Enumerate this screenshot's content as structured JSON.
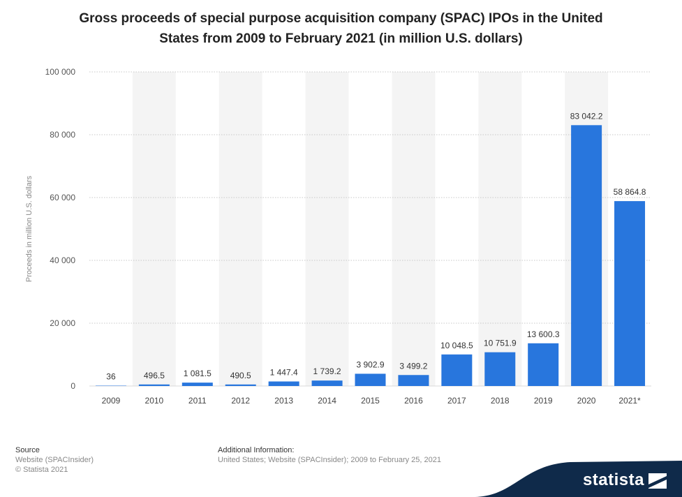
{
  "title": {
    "line1": "Gross proceeds of special purpose acquisition company (SPAC) IPOs in the United",
    "line2": "States from 2009 to February 2021 (in million U.S. dollars)"
  },
  "footer": {
    "source_label": "Source",
    "source_line1": "Website (SPACInsider)",
    "source_line2": "© Statista 2021",
    "additional_label": "Additional Information:",
    "additional_text": "United States; Website (SPACInsider); 2009 to February 25, 2021",
    "brand": "statista"
  },
  "colors": {
    "bar": "#2876dd",
    "band": "#f4f4f4",
    "grid": "#c8c8c8",
    "brand_bg": "#0f2a4a"
  },
  "chart_data": {
    "type": "bar",
    "title": "Gross proceeds of special purpose acquisition company (SPAC) IPOs in the United States from 2009 to February 2021 (in million U.S. dollars)",
    "xlabel": "",
    "ylabel": "Proceeds in million U.S. dollars",
    "ylim": [
      0,
      100000
    ],
    "yticks": [
      0,
      20000,
      40000,
      60000,
      80000,
      100000
    ],
    "ytick_labels": [
      "0",
      "20 000",
      "40 000",
      "60 000",
      "80 000",
      "100 000"
    ],
    "grid": true,
    "categories": [
      "2009",
      "2010",
      "2011",
      "2012",
      "2013",
      "2014",
      "2015",
      "2016",
      "2017",
      "2018",
      "2019",
      "2020",
      "2021*"
    ],
    "values": [
      36,
      496.5,
      1081.5,
      490.5,
      1447.4,
      1739.2,
      3902.9,
      3499.2,
      10048.5,
      10751.9,
      13600.3,
      83042.2,
      58864.8
    ],
    "value_labels": [
      "36",
      "496.5",
      "1 081.5",
      "490.5",
      "1 447.4",
      "1 739.2",
      "3 902.9",
      "3 499.2",
      "10 048.5",
      "10 751.9",
      "13 600.3",
      "83 042.2",
      "58 864.8"
    ]
  }
}
